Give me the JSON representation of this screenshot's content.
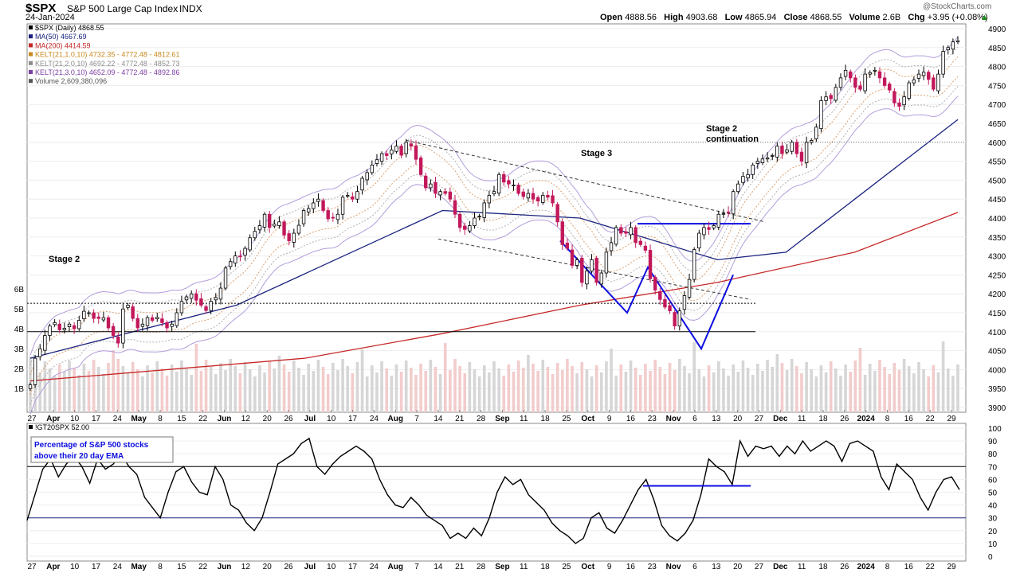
{
  "header": {
    "symbol": "$SPX",
    "name": "S&P 500 Large Cap Index",
    "exchange": "INDX",
    "date": "24-Jan-2024",
    "watermark": "@StockCharts.com",
    "open_label": "Open",
    "open": "4888.56",
    "high_label": "High",
    "high": "4903.68",
    "low_label": "Low",
    "low": "4865.94",
    "close_label": "Close",
    "close": "4868.55",
    "volume_label": "Volume",
    "volume": "2.6B",
    "chg_label": "Chg",
    "chg": "+3.95 (+0.08%)"
  },
  "legend": [
    {
      "text": "$SPX (Daily) 4868.55",
      "color": "#000000"
    },
    {
      "text": "MA(50) 4667.69",
      "color": "#1a237e"
    },
    {
      "text": "MA(200) 4414.59",
      "color": "#c62828"
    },
    {
      "text": "KELT(21,1.0,10) 4732.35 - 4772.48 - 4812.61",
      "color": "#c8881e"
    },
    {
      "text": "KELT(21,2.0,10) 4692.22 - 4772.48 - 4852.73",
      "color": "#8a8a8a"
    },
    {
      "text": "KELT(21,3.0,10) 4652.09 - 4772.48 - 4892.86",
      "color": "#7b3fa0"
    },
    {
      "text": "Volume 2,609,380,096",
      "color": "#555555"
    }
  ],
  "annotations": {
    "stage2_left": "Stage 2",
    "stage3": "Stage 3",
    "stage2_cont_1": "Stage 2",
    "stage2_cont_2": "continuation",
    "lower_legend": "!GT20SPX 52.00",
    "lower_box_1": "Percentage of S&P 500 stocks",
    "lower_box_2": "above their 20 day EMA"
  },
  "colors": {
    "up": "#000000",
    "down": "#c2185b",
    "ma50": "#1a237e",
    "ma200": "#c62828",
    "kelt1": "#d9a070",
    "kelt2": "#b0b0b0",
    "kelt3": "#b39ddb",
    "annot": "#0d0de0",
    "vol_up": "#d6d6d6",
    "vol_down": "#f2cccc"
  },
  "x_axis_labels": [
    "27",
    "Apr",
    "10",
    "17",
    "24",
    "May",
    "8",
    "15",
    "22",
    "Jun",
    "12",
    "20",
    "26",
    "Jul",
    "10",
    "17",
    "24",
    "Aug",
    "7",
    "14",
    "21",
    "28",
    "Sep",
    "11",
    "18",
    "25",
    "Oct",
    "9",
    "16",
    "23",
    "Nov",
    "6",
    "13",
    "20",
    "27",
    "Dec",
    "11",
    "18",
    "26",
    "2024",
    "8",
    "16",
    "22",
    "29"
  ],
  "chart_data": [
    {
      "type": "candlestick",
      "title": "$SPX S&P 500 Large Cap Index",
      "ylim": [
        3900,
        4900
      ],
      "y_ticks": [
        3900,
        3950,
        4000,
        4050,
        4100,
        4150,
        4200,
        4250,
        4300,
        4350,
        4400,
        4450,
        4500,
        4550,
        4600,
        4650,
        4700,
        4750,
        4800,
        4850,
        4900
      ],
      "volume_ticks": [
        "1B",
        "2B",
        "3B",
        "4B",
        "5B",
        "6B"
      ],
      "closes": [
        3960,
        4030,
        4055,
        4090,
        4115,
        4124,
        4105,
        4109,
        4120,
        4108,
        4130,
        4154,
        4150,
        4135,
        4135,
        4137,
        4110,
        4090,
        4070,
        4160,
        4170,
        4135,
        4110,
        4120,
        4137,
        4130,
        4138,
        4124,
        4110,
        4120,
        4150,
        4180,
        4192,
        4200,
        4183,
        4170,
        4156,
        4180,
        4190,
        4215,
        4268,
        4285,
        4300,
        4298,
        4320,
        4348,
        4365,
        4380,
        4410,
        4375,
        4384,
        4390,
        4355,
        4340,
        4360,
        4381,
        4420,
        4425,
        4440,
        4450,
        4420,
        4398,
        4400,
        4410,
        4455,
        4460,
        4450,
        4470,
        4505,
        4520,
        4540,
        4554,
        4570,
        4565,
        4580,
        4590,
        4566,
        4600,
        4590,
        4555,
        4515,
        4480,
        4490,
        4465,
        4470,
        4465,
        4450,
        4410,
        4375,
        4370,
        4380,
        4400,
        4405,
        4440,
        4460,
        4470,
        4515,
        4495,
        4490,
        4487,
        4465,
        4457,
        4465,
        4450,
        4445,
        4460,
        4455,
        4440,
        4390,
        4330,
        4320,
        4275,
        4290,
        4230,
        4260,
        4290,
        4230,
        4255,
        4310,
        4335,
        4375,
        4360,
        4360,
        4375,
        4335,
        4330,
        4315,
        4240,
        4210,
        4185,
        4165,
        4155,
        4115,
        4155,
        4195,
        4238,
        4317,
        4360,
        4375,
        4370,
        4380,
        4410,
        4412,
        4415,
        4470,
        4490,
        4510,
        4515,
        4540,
        4550,
        4556,
        4559,
        4565,
        4590,
        4570,
        4580,
        4600,
        4570,
        4550,
        4600,
        4605,
        4640,
        4710,
        4720,
        4715,
        4745,
        4770,
        4790,
        4770,
        4745,
        4740,
        4780,
        4784,
        4790,
        4770,
        4750,
        4738,
        4704,
        4695,
        4720,
        4757,
        4765,
        4780,
        4785,
        4766,
        4740,
        4780,
        4840,
        4850,
        4865,
        4868
      ],
      "ma50_anchors": [
        [
          0,
          4030
        ],
        [
          60,
          4170
        ],
        [
          120,
          4420
        ],
        [
          160,
          4400
        ],
        [
          200,
          4290
        ],
        [
          220,
          4310
        ],
        [
          240,
          4450
        ],
        [
          270,
          4660
        ]
      ],
      "ma200_anchors": [
        [
          0,
          3970
        ],
        [
          80,
          4030
        ],
        [
          120,
          4095
        ],
        [
          160,
          4170
        ],
        [
          200,
          4230
        ],
        [
          240,
          4310
        ],
        [
          270,
          4415
        ]
      ],
      "support_lines": {
        "dotted_4600": 4600,
        "solid_4100": 4100,
        "dotted_4175": 4175,
        "resistance_4385": 4385
      }
    },
    {
      "type": "line",
      "series": [
        {
          "name": "!GT20SPX",
          "last": 52.0
        }
      ],
      "ylim": [
        0,
        100
      ],
      "y_ticks": [
        0,
        10,
        20,
        30,
        40,
        50,
        60,
        70,
        80,
        90,
        100
      ],
      "reference_lines": [
        30,
        70
      ],
      "values": [
        28,
        48,
        68,
        76,
        62,
        72,
        78,
        70,
        57,
        76,
        68,
        72,
        80,
        70,
        64,
        46,
        38,
        30,
        50,
        66,
        70,
        58,
        50,
        48,
        70,
        60,
        40,
        36,
        26,
        20,
        30,
        50,
        72,
        76,
        80,
        88,
        92,
        70,
        64,
        72,
        78,
        82,
        86,
        82,
        76,
        60,
        48,
        40,
        38,
        46,
        40,
        32,
        28,
        24,
        14,
        18,
        14,
        22,
        16,
        30,
        50,
        62,
        56,
        60,
        48,
        42,
        36,
        26,
        20,
        16,
        10,
        14,
        30,
        34,
        22,
        18,
        28,
        40,
        52,
        60,
        44,
        24,
        16,
        12,
        18,
        28,
        48,
        76,
        70,
        66,
        56,
        90,
        78,
        86,
        84,
        86,
        78,
        86,
        80,
        90,
        82,
        86,
        90,
        86,
        74,
        88,
        90,
        86,
        82,
        62,
        52,
        72,
        66,
        60,
        46,
        36,
        50,
        60,
        62,
        52
      ],
      "stage_line": 55
    }
  ]
}
